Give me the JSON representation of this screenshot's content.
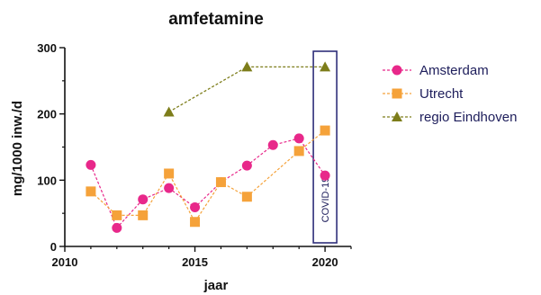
{
  "chart_data": {
    "type": "line",
    "title": "amfetamine",
    "xlabel": "jaar",
    "ylabel": "mg/1000 inw./d",
    "xlim": [
      2010,
      2021
    ],
    "ylim": [
      0,
      300
    ],
    "xticks": [
      2010,
      2015,
      2020
    ],
    "yticks": [
      0,
      100,
      200,
      300
    ],
    "grid": false,
    "legend_position": "right",
    "annotation": "COVID-19",
    "series": [
      {
        "name": "Amsterdam",
        "color": "#e8288a",
        "marker": "circle",
        "x": [
          2011,
          2012,
          2013,
          2014,
          2015,
          2016,
          2017,
          2018,
          2019,
          2020
        ],
        "y": [
          123,
          28,
          71,
          88,
          59,
          97,
          122,
          153,
          163,
          107
        ]
      },
      {
        "name": "Utrecht",
        "color": "#f5a23a",
        "marker": "square",
        "x": [
          2011,
          2012,
          2013,
          2014,
          2015,
          2016,
          2017,
          2019,
          2020
        ],
        "y": [
          83,
          47,
          47,
          110,
          37,
          97,
          75,
          144,
          175
        ]
      },
      {
        "name": "regio Eindhoven",
        "color": "#7d7d1a",
        "marker": "triangle",
        "x": [
          2014,
          2017,
          2020
        ],
        "y": [
          203,
          271,
          271
        ]
      }
    ]
  }
}
